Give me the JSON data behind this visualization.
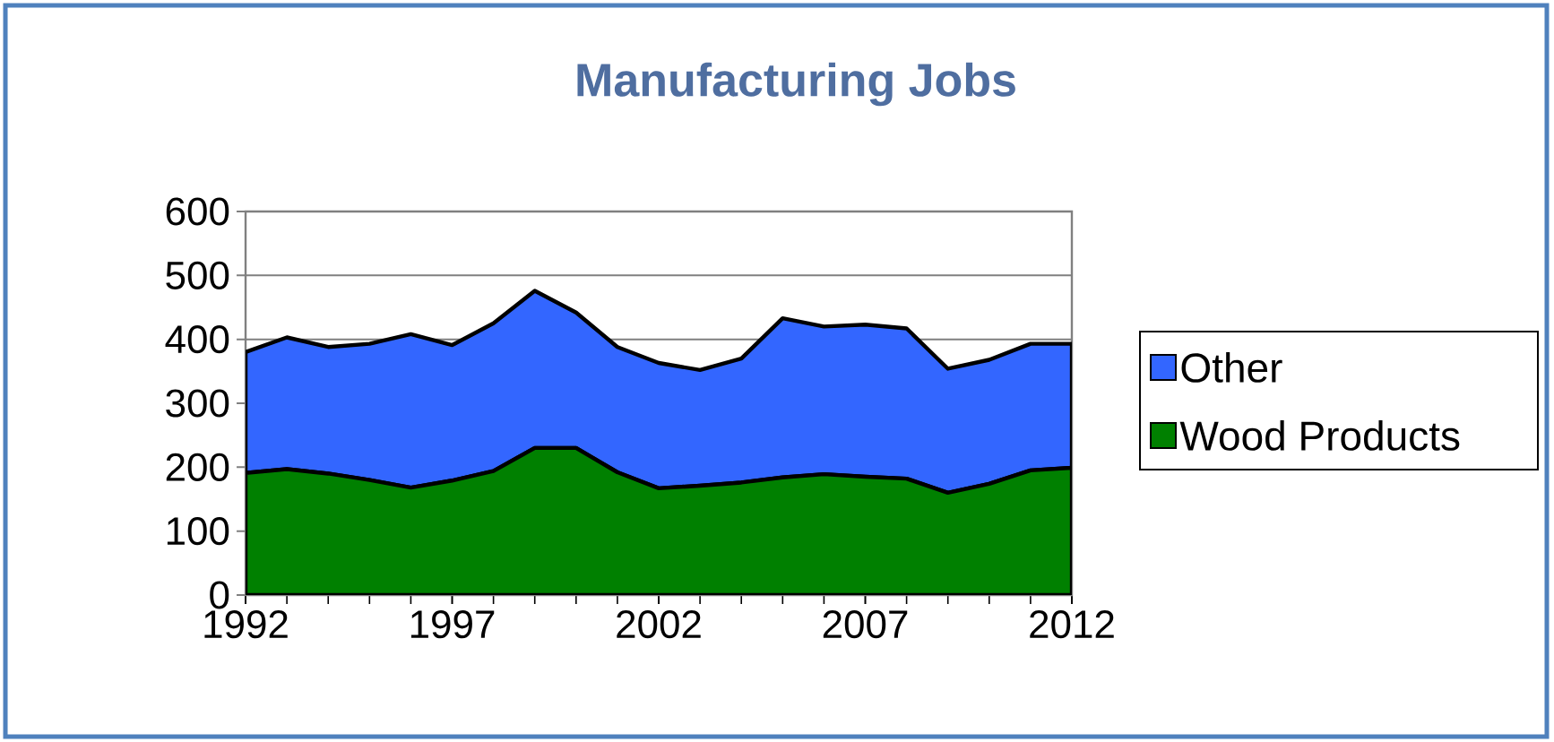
{
  "chart_data": {
    "type": "area",
    "title": "Manufacturing Jobs",
    "x": [
      1992,
      1993,
      1994,
      1995,
      1996,
      1997,
      1998,
      1999,
      2000,
      2001,
      2002,
      2003,
      2004,
      2005,
      2006,
      2007,
      2008,
      2009,
      2010,
      2011,
      2012
    ],
    "series": [
      {
        "name": "Wood Products",
        "color": "#008000",
        "values": [
          191,
          197,
          190,
          180,
          168,
          179,
          194,
          230,
          230,
          192,
          167,
          171,
          176,
          184,
          189,
          185,
          182,
          160,
          174,
          195,
          199
        ]
      },
      {
        "name": "Other",
        "color": "#3366ff",
        "values": [
          189,
          206,
          198,
          213,
          240,
          212,
          231,
          246,
          212,
          196,
          196,
          181,
          194,
          249,
          231,
          238,
          235,
          194,
          194,
          198,
          194
        ]
      }
    ],
    "stacked": true,
    "xlim": [
      1992,
      2012
    ],
    "ylim": [
      0,
      600
    ],
    "xticks": [
      1992,
      1997,
      2002,
      2007,
      2012
    ],
    "yticks": [
      0,
      100,
      200,
      300,
      400,
      500,
      600
    ],
    "grid": "y",
    "legend": "right"
  }
}
